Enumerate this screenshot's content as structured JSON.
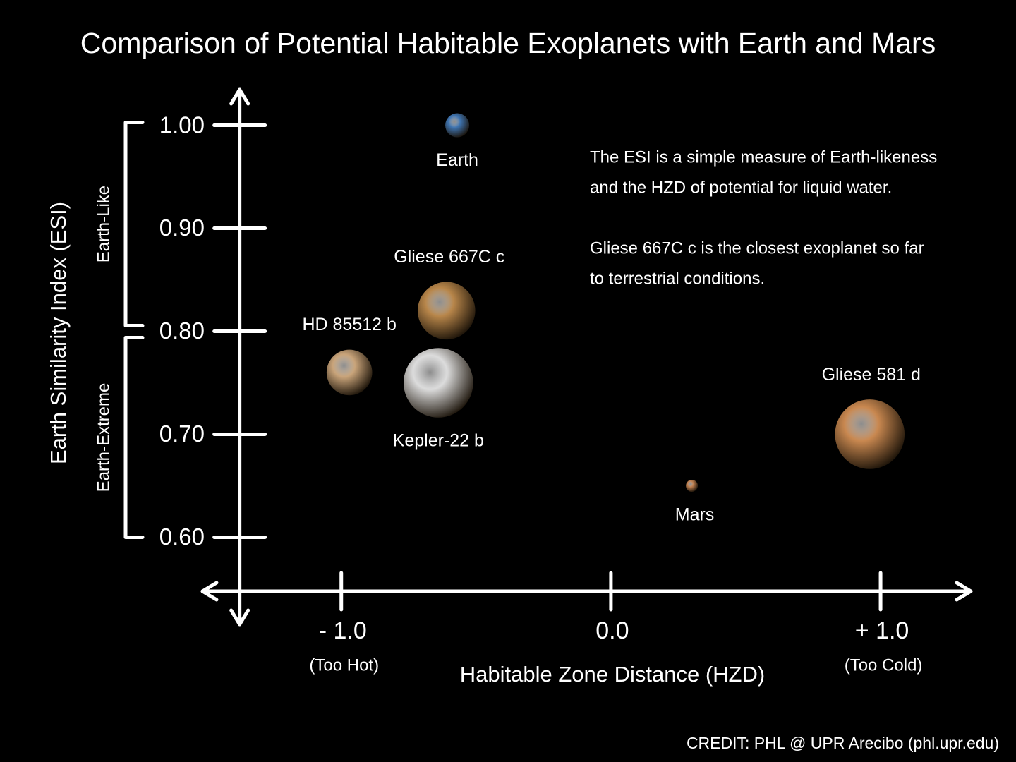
{
  "chart_data": {
    "type": "scatter",
    "title": "Comparison of Potential Habitable Exoplanets with Earth and Mars",
    "x_label": "Habitable Zone Distance (HZD)",
    "y_label": "Earth Similarity Index (ESI)",
    "xlim": [
      -1.52,
      1.34
    ],
    "ylim": [
      0.514,
      1.036
    ],
    "xticks": [
      {
        "value": -1,
        "label": "- 1.0"
      },
      {
        "value": 0,
        "label": "0.0"
      },
      {
        "value": 1,
        "label": "+ 1.0"
      }
    ],
    "xtick_notes": [
      "(Too Hot)",
      null,
      "(Too Cold)"
    ],
    "yticks": [
      {
        "value": 0.6,
        "label": "0.60"
      },
      {
        "value": 0.7,
        "label": "0.70"
      },
      {
        "value": 0.8,
        "label": "0.80"
      },
      {
        "value": 0.9,
        "label": "0.90"
      },
      {
        "value": 1.0,
        "label": "1.00"
      }
    ],
    "regions": [
      {
        "label": "Earth-Like",
        "range": [
          0.8,
          1.0
        ]
      },
      {
        "label": "Earth-Extreme",
        "range": [
          0.6,
          0.8
        ]
      }
    ],
    "points": [
      {
        "name": "Earth",
        "x": -0.57,
        "y": 1.0,
        "size": 1.0,
        "color": "#3f74b0"
      },
      {
        "name": "Gliese 667C c",
        "x": -0.61,
        "y": 0.82,
        "size": 2.4,
        "color": "#b8864a"
      },
      {
        "name": "HD 85512 b",
        "x": -0.97,
        "y": 0.76,
        "size": 1.9,
        "color": "#c9a47a"
      },
      {
        "name": "Kepler-22 b",
        "x": -0.64,
        "y": 0.75,
        "size": 2.9,
        "color": "#dcdcdc"
      },
      {
        "name": "Gliese 581 d",
        "x": 0.96,
        "y": 0.7,
        "size": 2.9,
        "color": "#c98850"
      },
      {
        "name": "Mars",
        "x": 0.3,
        "y": 0.65,
        "size": 0.5,
        "color": "#c08050"
      }
    ],
    "notes": [
      "The ESI is a simple measure of Earth-likeness",
      "and the HZD of potential for liquid water.",
      "Gliese 667C c is the closest exoplanet so far",
      "to terrestrial conditions."
    ],
    "credit": "CREDIT: PHL @ UPR Arecibo (phl.upr.edu)"
  }
}
